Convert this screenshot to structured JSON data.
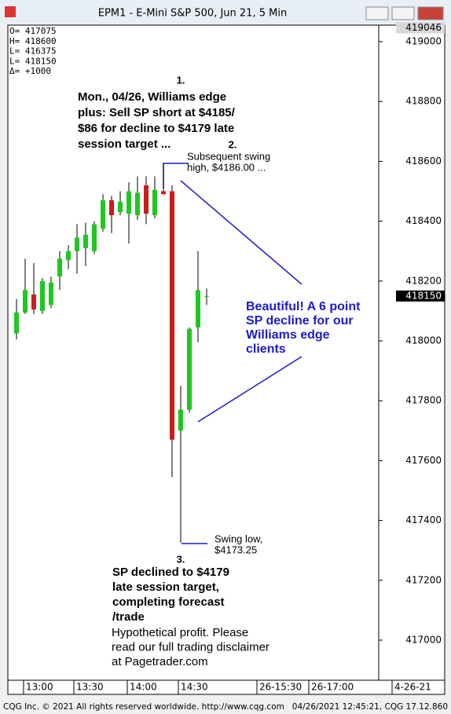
{
  "window": {
    "title": "EPM1 - E-Mini S&P 500, Jun 21, 5 Min"
  },
  "info_box": [
    "O=  417075",
    "H=  418600",
    "L=  416375",
    "L=  418150",
    "Δ=    +1000"
  ],
  "chart_data": {
    "type": "candlestick",
    "open": [
      418025,
      418095,
      418155,
      418100,
      418120,
      418215,
      418270,
      418300,
      418310,
      418300,
      418375,
      418470,
      418430,
      418425,
      418420,
      418520,
      418420,
      418500,
      418500,
      417700,
      417770,
      418045,
      418150
    ],
    "high": [
      418140,
      418275,
      418260,
      418210,
      418215,
      418300,
      418320,
      418390,
      418395,
      418400,
      418490,
      418485,
      418500,
      418530,
      418550,
      418550,
      418550,
      418595,
      418520,
      417850,
      418045,
      418300,
      418175
    ],
    "low": [
      418005,
      418090,
      418090,
      418090,
      418110,
      418170,
      418240,
      418225,
      418250,
      418290,
      418365,
      418360,
      418420,
      418325,
      418405,
      418390,
      418410,
      418490,
      417545,
      417325,
      417760,
      417995,
      418120
    ],
    "close": [
      418095,
      418170,
      418105,
      418200,
      418195,
      418275,
      418300,
      418345,
      418355,
      418390,
      418470,
      418420,
      418465,
      418500,
      418495,
      418425,
      418505,
      418490,
      417670,
      417770,
      418040,
      418170,
      418150
    ],
    "up_color": "#1ec81e",
    "down_color": "#cc1c1c",
    "ylim": [
      416870,
      419046
    ],
    "yticks": [
      417000,
      417200,
      417400,
      417600,
      417800,
      418000,
      418200,
      418400,
      418600,
      418800,
      419000
    ],
    "price_tags": [
      419046,
      418150
    ],
    "time_labels": [
      "13:00",
      "13:30",
      "14:00",
      "14:30",
      "26-15:30",
      "26-17:00",
      "4-26-21"
    ],
    "annotations": [
      {
        "number": "1.",
        "lines": [
          "Mon., 04/26, Williams edge",
          "plus: Sell SP short at $4185/",
          "$86 for decline to $4179 late",
          "session target ..."
        ]
      },
      {
        "number": "2.",
        "lines": [
          "Subsequent swing",
          "high, $4186.00 ..."
        ]
      },
      {
        "number": "",
        "lines": [
          "Beautiful! A 6 point",
          "SP decline for our",
          "Williams edge",
          "clients"
        ]
      },
      {
        "number": "",
        "lines": [
          "Swing low,",
          "$4173.25"
        ]
      },
      {
        "number": "3.",
        "lines": [
          "SP declined to $4179",
          "late session target,",
          "completing forecast",
          "/trade"
        ]
      },
      {
        "number": "",
        "lines": [
          "Hypothetical profit. Please",
          "read our full trading disclaimer",
          "at Pagetrader.com"
        ]
      }
    ]
  },
  "footer": {
    "left": "CQG Inc. © 2021 All rights reserved worldwide. http://www.cqg.com",
    "right": "04/26/2021 12:45:21, CQG 17.12.860"
  }
}
